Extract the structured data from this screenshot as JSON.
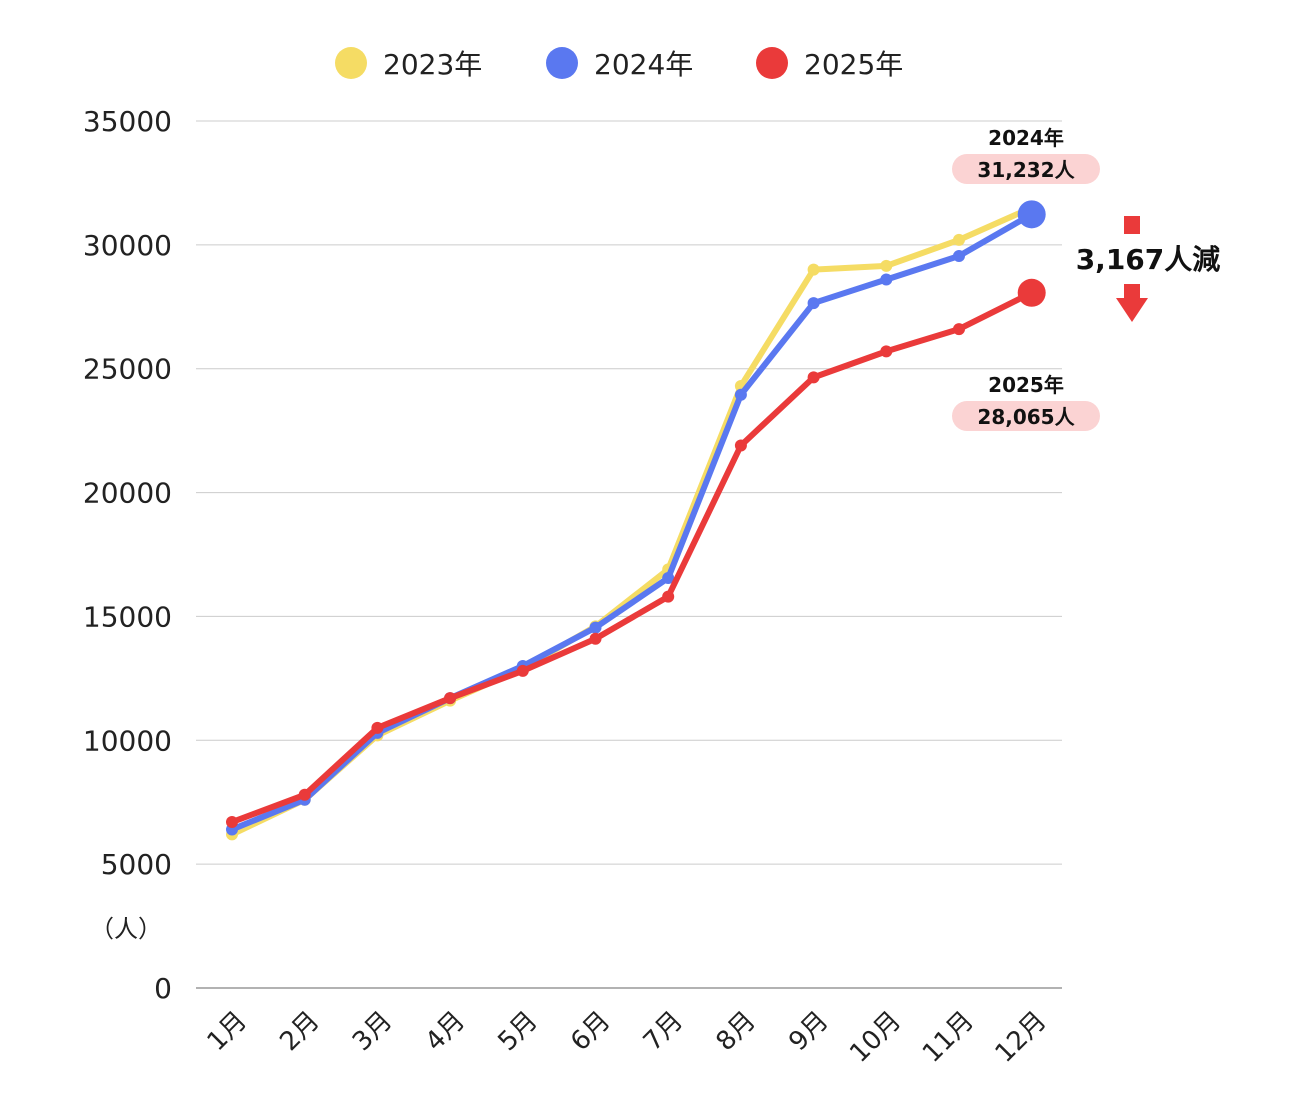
{
  "chart_data": {
    "type": "line",
    "categories": [
      "1月",
      "2月",
      "3月",
      "4月",
      "5月",
      "6月",
      "7月",
      "8月",
      "9月",
      "10月",
      "11月",
      "12月"
    ],
    "series": [
      {
        "name": "2023年",
        "color": "#f5dc64",
        "values": [
          6200,
          7600,
          10200,
          11600,
          12900,
          14600,
          16900,
          24300,
          29000,
          29150,
          30200,
          31500
        ]
      },
      {
        "name": "2024年",
        "color": "#5a78f0",
        "values": [
          6400,
          7600,
          10300,
          11700,
          13000,
          14550,
          16550,
          23950,
          27650,
          28600,
          29550,
          31232
        ]
      },
      {
        "name": "2025年",
        "color": "#ea3a3a",
        "values": [
          6700,
          7800,
          10500,
          11700,
          12800,
          14100,
          15800,
          21900,
          24650,
          25700,
          26600,
          28065
        ]
      }
    ],
    "ylim": [
      0,
      35000
    ],
    "yticks": [
      0,
      5000,
      10000,
      15000,
      20000,
      25000,
      30000,
      35000
    ],
    "ytick_labels": [
      "0",
      "5000",
      "10000",
      "15000",
      "20000",
      "25000",
      "30000",
      "35000"
    ],
    "ylabel": "（人）",
    "xlabel": "",
    "legend_position": "top",
    "grid": true
  },
  "callouts": {
    "y2024": {
      "year": "2024年",
      "value": "31,232人"
    },
    "y2025": {
      "year": "2025年",
      "value": "28,065人"
    },
    "difference": "3,167人減"
  },
  "colors": {
    "callout_bg": "#fbd3d3",
    "arrow": "#ea3a3a",
    "grid": "#cccccc",
    "axis": "#999999"
  }
}
